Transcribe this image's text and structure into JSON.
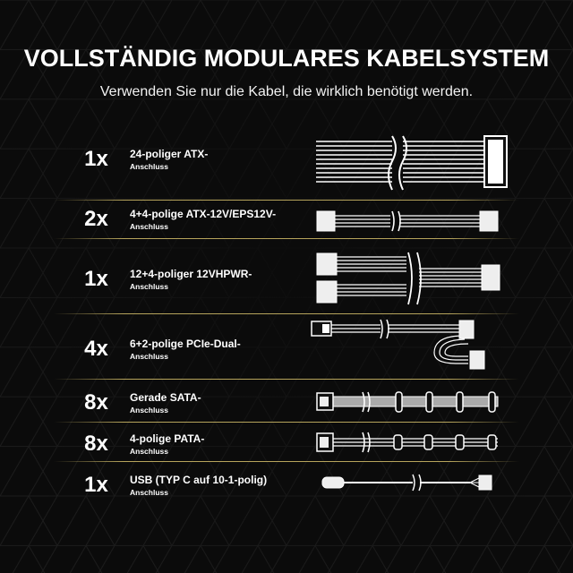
{
  "header": {
    "title": "VOLLSTÄNDIG MODULARES KABELSYSTEM",
    "subtitle": "Verwenden Sie nur die Kabel, die wirklich benötigt werden."
  },
  "cables": [
    {
      "count": "1x",
      "label": "24-poliger ATX-",
      "sub": "Anschluss",
      "icon": "atx-24pin-cable-icon"
    },
    {
      "count": "2x",
      "label": "4+4-polige ATX-12V/EPS12V-",
      "sub": "Anschluss",
      "icon": "eps-cable-icon"
    },
    {
      "count": "1x",
      "label": "12+4-poliger 12VHPWR-",
      "sub": "Anschluss",
      "icon": "12vhpwr-cable-icon"
    },
    {
      "count": "4x",
      "label": "6+2-polige PCIe-Dual-",
      "sub": "Anschluss",
      "icon": "pcie-dual-cable-icon"
    },
    {
      "count": "8x",
      "label": "Gerade SATA-",
      "sub": "Anschluss",
      "icon": "sata-cable-icon"
    },
    {
      "count": "8x",
      "label": "4-polige PATA-",
      "sub": "Anschluss",
      "icon": "pata-cable-icon"
    },
    {
      "count": "1x",
      "label": "USB (TYP C auf 10-1-polig)",
      "sub": "Anschluss",
      "icon": "usb-cable-icon"
    }
  ],
  "colors": {
    "background": "#0b0b0b",
    "divider": "#c8b464",
    "text": "#ffffff"
  }
}
